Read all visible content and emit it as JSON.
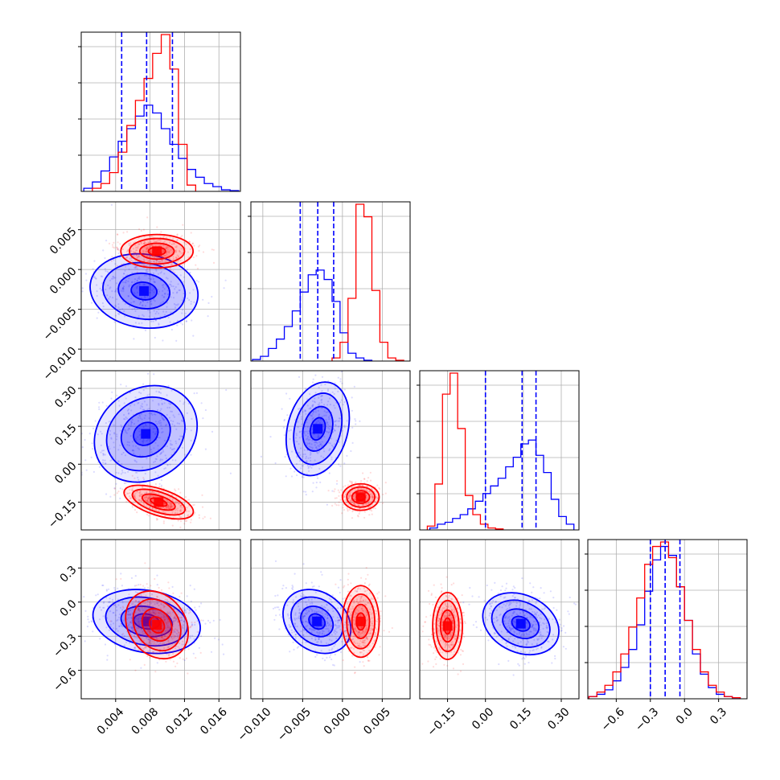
{
  "colors": {
    "series_blue": "#0000ff",
    "series_red": "#ff0000",
    "grid": "#b0b0b0",
    "axis": "#000000"
  },
  "parameters": [
    {
      "lim": [
        0.0,
        0.0185
      ],
      "ticks": [
        0.004,
        0.008,
        0.012,
        0.016
      ],
      "tick_labels": [
        "0.004",
        "0.008",
        "0.012",
        "0.016"
      ]
    },
    {
      "lim": [
        -0.0115,
        0.0085
      ],
      "ticks": [
        -0.01,
        -0.005,
        0.0,
        0.005
      ],
      "tick_labels": [
        "−0.010",
        "−0.005",
        "0.000",
        "0.005"
      ]
    },
    {
      "lim": [
        -0.26,
        0.37
      ],
      "ticks": [
        -0.15,
        0.0,
        0.15,
        0.3
      ],
      "tick_labels": [
        "−0.15",
        "0.00",
        "0.15",
        "0.30"
      ]
    },
    {
      "lim": [
        -0.85,
        0.55
      ],
      "ticks": [
        -0.6,
        -0.3,
        0.0,
        0.3
      ],
      "tick_labels": [
        "−0.6",
        "−0.3",
        "0.0",
        "0.3"
      ]
    }
  ],
  "chart_data": {
    "type": "corner",
    "title": "",
    "grid": true,
    "legend": "none",
    "series": [
      {
        "color": "#0000ff",
        "histograms": [
          {
            "bins": [
              0.0003,
              0.0013,
              0.0023,
              0.0033,
              0.0043,
              0.0053,
              0.0063,
              0.0073,
              0.0083,
              0.0093,
              0.0103,
              0.0113,
              0.0123,
              0.0133,
              0.0143,
              0.0153,
              0.0163,
              0.0173,
              0.0183
            ],
            "counts": [
              2,
              6,
              13,
              22,
              32,
              40,
              48,
              55,
              50,
              40,
              30,
              21,
              14,
              9,
              5,
              3,
              1,
              0.5
            ],
            "quantiles": [
              0.0047,
              0.0076,
              0.0106
            ]
          },
          {
            "bins": [
              -0.0113,
              -0.0103,
              -0.0093,
              -0.0083,
              -0.0073,
              -0.0063,
              -0.0053,
              -0.0043,
              -0.0033,
              -0.0023,
              -0.0013,
              -0.0003,
              0.0007,
              0.0017,
              0.0027,
              0.0037
            ],
            "counts": [
              1,
              3,
              8,
              14,
              22,
              32,
              44,
              55,
              58,
              52,
              38,
              18,
              5,
              2,
              0.5
            ],
            "quantiles": [
              -0.0053,
              -0.0031,
              -0.0011
            ]
          },
          {
            "bins": [
              -0.22,
              -0.19,
              -0.16,
              -0.13,
              -0.1,
              -0.07,
              -0.04,
              -0.01,
              0.02,
              0.05,
              0.08,
              0.11,
              0.14,
              0.17,
              0.2,
              0.23,
              0.26,
              0.29,
              0.32,
              0.35
            ],
            "counts": [
              1,
              3,
              4,
              6,
              8,
              11,
              15,
              19,
              23,
              27,
              33,
              38,
              45,
              47,
              39,
              30,
              16,
              7,
              3
            ],
            "quantiles": [
              0.0,
              0.145,
              0.2
            ]
          },
          {
            "bins": [
              -0.84,
              -0.77,
              -0.7,
              -0.63,
              -0.56,
              -0.49,
              -0.42,
              -0.35,
              -0.28,
              -0.21,
              -0.14,
              -0.07,
              0.0,
              0.07,
              0.14,
              0.21,
              0.28,
              0.35,
              0.42,
              0.49
            ],
            "counts": [
              1,
              2,
              4,
              8,
              14,
              22,
              33,
              48,
              62,
              68,
              64,
              50,
              35,
              20,
              11,
              5,
              2,
              1,
              0.5
            ],
            "quantiles": [
              -0.3,
              -0.17,
              -0.04
            ]
          }
        ]
      },
      {
        "color": "#ff0000",
        "histograms": [
          {
            "bins": [
              0.0013,
              0.0023,
              0.0033,
              0.0043,
              0.0053,
              0.0063,
              0.0073,
              0.0083,
              0.0093,
              0.0103,
              0.0113,
              0.0123,
              0.0133
            ],
            "counts": [
              2,
              5,
              12,
              25,
              42,
              58,
              72,
              88,
              100,
              78,
              30,
              4
            ]
          },
          {
            "bins": [
              -0.0013,
              -0.0003,
              0.0007,
              0.0017,
              0.0027,
              0.0037,
              0.0047,
              0.0057,
              0.0067,
              0.0077
            ],
            "counts": [
              2,
              12,
              40,
              100,
              92,
              45,
              12,
              2,
              0.5
            ]
          },
          {
            "bins": [
              -0.23,
              -0.2,
              -0.17,
              -0.14,
              -0.11,
              -0.08,
              -0.05,
              -0.02,
              0.01,
              0.04,
              0.07
            ],
            "counts": [
              2,
              24,
              71,
              82,
              53,
              18,
              8,
              3,
              1,
              0.5
            ]
          },
          {
            "bins": [
              -0.84,
              -0.77,
              -0.7,
              -0.63,
              -0.56,
              -0.49,
              -0.42,
              -0.35,
              -0.28,
              -0.21,
              -0.14,
              -0.07,
              0.0,
              0.07,
              0.14,
              0.21,
              0.28,
              0.35,
              0.42,
              0.49
            ],
            "counts": [
              1,
              3,
              6,
              12,
              20,
              32,
              45,
              60,
              68,
              70,
              63,
              50,
              35,
              22,
              12,
              6,
              3,
              1,
              0.5
            ]
          }
        ]
      }
    ],
    "pairs": [
      {
        "x": 0,
        "y": 1,
        "blue": {
          "mean": [
            0.0073,
            -0.0027
          ],
          "sd": [
            0.003,
            0.0022
          ],
          "rot": -8
        },
        "red": {
          "mean": [
            0.0088,
            0.0023
          ],
          "sd": [
            0.002,
            0.001
          ],
          "rot": 0
        }
      },
      {
        "x": 0,
        "y": 2,
        "blue": {
          "mean": [
            0.0075,
            0.12
          ],
          "sd": [
            0.003,
            0.085
          ],
          "rot": 35
        },
        "red": {
          "mean": [
            0.009,
            -0.15
          ],
          "sd": [
            0.002,
            0.025
          ],
          "rot": -18
        }
      },
      {
        "x": 0,
        "y": 3,
        "blue": {
          "mean": [
            0.0076,
            -0.17
          ],
          "sd": [
            0.003,
            0.13
          ],
          "rot": -10
        },
        "red": {
          "mean": [
            0.0088,
            -0.2
          ],
          "sd": [
            0.002,
            0.12
          ],
          "rot": -55
        }
      },
      {
        "x": 1,
        "y": 2,
        "blue": {
          "mean": [
            -0.0031,
            0.14
          ],
          "sd": [
            0.0018,
            0.09
          ],
          "rot": -15
        },
        "red": {
          "mean": [
            0.0023,
            -0.13
          ],
          "sd": [
            0.0011,
            0.025
          ],
          "rot": 0
        }
      },
      {
        "x": 1,
        "y": 3,
        "blue": {
          "mean": [
            -0.0032,
            -0.17
          ],
          "sd": [
            0.0022,
            0.12
          ],
          "rot": -38
        },
        "red": {
          "mean": [
            0.0023,
            -0.17
          ],
          "sd": [
            0.0011,
            0.15
          ],
          "rot": 0
        }
      },
      {
        "x": 2,
        "y": 3,
        "blue": {
          "mean": [
            0.14,
            -0.19
          ],
          "sd": [
            0.075,
            0.12
          ],
          "rot": -25
        },
        "red": {
          "mean": [
            -0.15,
            -0.21
          ],
          "sd": [
            0.028,
            0.14
          ],
          "rot": 0
        }
      }
    ]
  }
}
